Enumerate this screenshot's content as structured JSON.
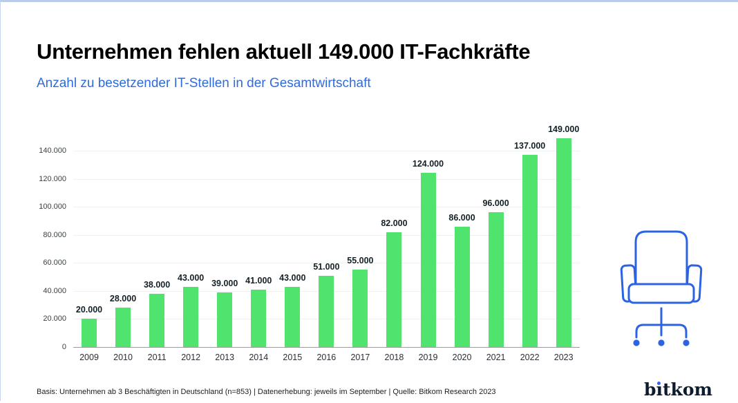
{
  "header": {
    "title": "Unternehmen fehlen aktuell 149.000 IT-Fachkräfte",
    "subtitle": "Anzahl zu besetzender IT-Stellen in der Gesamtwirtschaft"
  },
  "chart_data": {
    "type": "bar",
    "title": "Unternehmen fehlen aktuell 149.000 IT-Fachkräfte",
    "subtitle": "Anzahl zu besetzender IT-Stellen in der Gesamtwirtschaft",
    "categories": [
      "2009",
      "2010",
      "2011",
      "2012",
      "2013",
      "2014",
      "2015",
      "2016",
      "2017",
      "2018",
      "2019",
      "2020",
      "2021",
      "2022",
      "2023"
    ],
    "values": [
      20000,
      28000,
      38000,
      43000,
      39000,
      41000,
      43000,
      51000,
      55000,
      82000,
      124000,
      86000,
      96000,
      137000,
      149000
    ],
    "value_labels": [
      "20.000",
      "28.000",
      "38.000",
      "43.000",
      "39.000",
      "41.000",
      "43.000",
      "51.000",
      "55.000",
      "82.000",
      "124.000",
      "86.000",
      "96.000",
      "137.000",
      "149.000"
    ],
    "xlabel": "",
    "ylabel": "",
    "ylim": [
      0,
      167000
    ],
    "yticks": [
      0,
      20000,
      40000,
      60000,
      80000,
      100000,
      120000,
      140000
    ],
    "ytick_labels": [
      "0",
      "20.000",
      "40.000",
      "60.000",
      "80.000",
      "100.000",
      "120.000",
      "140.000"
    ],
    "grid": "horizontal-light",
    "legend": "none",
    "bar_color": "#50E36E"
  },
  "icons": {
    "office_chair": "office-chair-icon",
    "chair_color": "#2b63e0"
  },
  "footer": {
    "source": "Basis: Unternehmen ab 3 Beschäftigten in Deutschland (n=853) | Datenerhebung: jeweils im September | Quelle: Bitkom Research 2023",
    "logo": "bitkom"
  },
  "colors": {
    "bar_green": "#50E36E",
    "subtitle_blue": "#2e6bdb",
    "chair_blue": "#2b63e0",
    "logo_navy": "#0d1b2e",
    "logo_dot_blue": "#3565e0",
    "top_border": "#b9cde9",
    "gridline": "#eef1f1",
    "axis_line": "#9b9b9b"
  }
}
